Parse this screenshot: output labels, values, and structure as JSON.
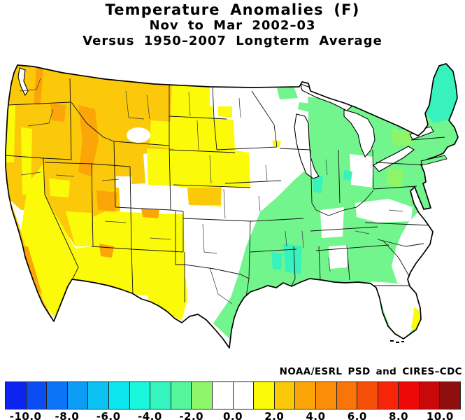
{
  "title": {
    "line1": "Temperature Anomalies (F)",
    "line2": "Nov to Mar 2002–03",
    "line3": "Versus 1950–2007 Longterm Average"
  },
  "attribution": "NOAA/ESRL PSD and CIRES–CDC",
  "colorbar": {
    "units": "F",
    "range": [
      -11,
      11
    ],
    "cell_colors": [
      "#0B24F0",
      "#0B4DF2",
      "#0B74F6",
      "#0B9CF6",
      "#0BC2F2",
      "#0BE6EE",
      "#19F8DD",
      "#35F6BE",
      "#55F79D",
      "#8DF668",
      "#FFFFFF",
      "#FFFFFF",
      "#FBFB09",
      "#FBC909",
      "#FBA509",
      "#FB8D09",
      "#F97509",
      "#F74E09",
      "#F62509",
      "#EE0909",
      "#C90909",
      "#8F0F0F"
    ],
    "tick_labels": [
      "-10.0",
      "-8.0",
      "-6.0",
      "-4.0",
      "-2.0",
      "0.0",
      "2.0",
      "4.0",
      "6.0",
      "8.0",
      "10.0"
    ],
    "tick_values": [
      -10,
      -8,
      -6,
      -4,
      -2,
      0,
      2,
      4,
      6,
      8,
      10
    ],
    "tick_positions": [
      1,
      3,
      5,
      7,
      9,
      11,
      13,
      15,
      17,
      19,
      21
    ],
    "cells_total": 22,
    "border_color": "#222222"
  },
  "map": {
    "palette": {
      "gold": "#FBC909",
      "yellow": "#FBFB09",
      "orange": "#FBA509",
      "white": "#FFFFFF",
      "green": "#72F58C",
      "ygreen": "#8DF668",
      "turquoise": "#38F2BE",
      "cyan": "#22E8D6",
      "line": "#000000"
    },
    "legend_summary": [
      {
        "region": "Pacific Northwest / Great Basin / Rockies",
        "anomaly_f": "+2 to +4",
        "color_name": "gold-orange"
      },
      {
        "region": "Idaho / interior patches",
        "anomaly_f": "+3 to +5",
        "color_name": "orange"
      },
      {
        "region": "Southwest and western Plains",
        "anomaly_f": "+1 to +2",
        "color_name": "yellow"
      },
      {
        "region": "Central corridor (MN to central TX)",
        "anomaly_f": "-1 to +1",
        "color_name": "white"
      },
      {
        "region": "East / Southeast / Great Lakes",
        "anomaly_f": "-1 to -3",
        "color_name": "green"
      },
      {
        "region": "Northern New England / Maine",
        "anomaly_f": "-3 to -5",
        "color_name": "turquoise"
      },
      {
        "region": "Southeast Florida coastal strip",
        "anomaly_f": "+1 to +2",
        "color_name": "yellow"
      }
    ]
  }
}
